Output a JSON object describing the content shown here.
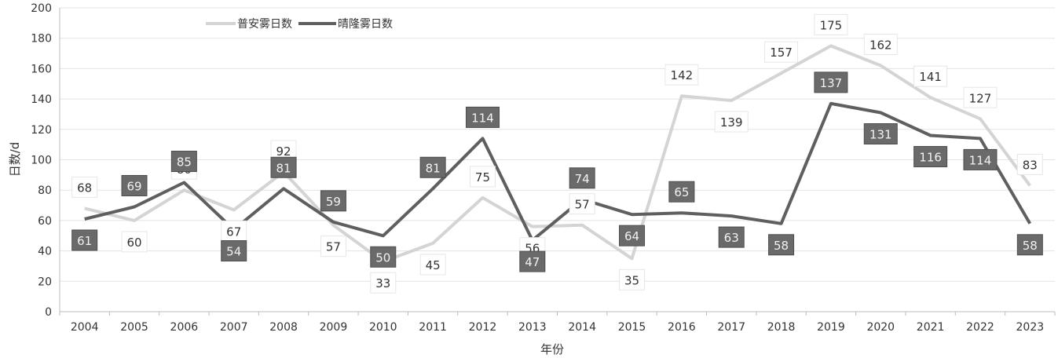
{
  "chart_data": {
    "type": "line",
    "xlabel": "年份",
    "ylabel": "日数/d",
    "ylim": [
      0,
      200
    ],
    "yticks": [
      0,
      20,
      40,
      60,
      80,
      100,
      120,
      140,
      160,
      180,
      200
    ],
    "grid": true,
    "legend_position": "top-left",
    "categories": [
      "2004",
      "2005",
      "2006",
      "2007",
      "2008",
      "2009",
      "2010",
      "2011",
      "2012",
      "2013",
      "2014",
      "2015",
      "2016",
      "2017",
      "2018",
      "2019",
      "2020",
      "2021",
      "2022",
      "2023"
    ],
    "series": [
      {
        "name": "普安雾日数",
        "color": "#d4d4d4",
        "label_style": "light",
        "values": [
          68,
          60,
          80,
          67,
          92,
          57,
          33,
          45,
          75,
          56,
          57,
          35,
          142,
          139,
          157,
          175,
          162,
          141,
          127,
          83
        ],
        "labels": [
          "68",
          "60",
          "80",
          "67",
          "92",
          "57",
          "33",
          "45",
          "75",
          "56",
          "57",
          "35",
          "142",
          "139",
          "157",
          "175",
          "162",
          "141",
          "127",
          "83"
        ]
      },
      {
        "name": "晴隆雾日数",
        "color": "#5f5f5f",
        "label_style": "dark",
        "values": [
          61,
          69,
          85,
          54,
          81,
          59,
          50,
          81,
          114,
          47,
          74,
          64,
          65,
          63,
          58,
          137,
          131,
          116,
          114,
          58
        ],
        "labels": [
          "61",
          "69",
          "85",
          "54",
          "81",
          "59",
          "50",
          "81",
          "114",
          "47",
          "74",
          "64",
          "65",
          "63",
          "58",
          "137",
          "131",
          "116",
          "114",
          "58"
        ]
      }
    ]
  }
}
